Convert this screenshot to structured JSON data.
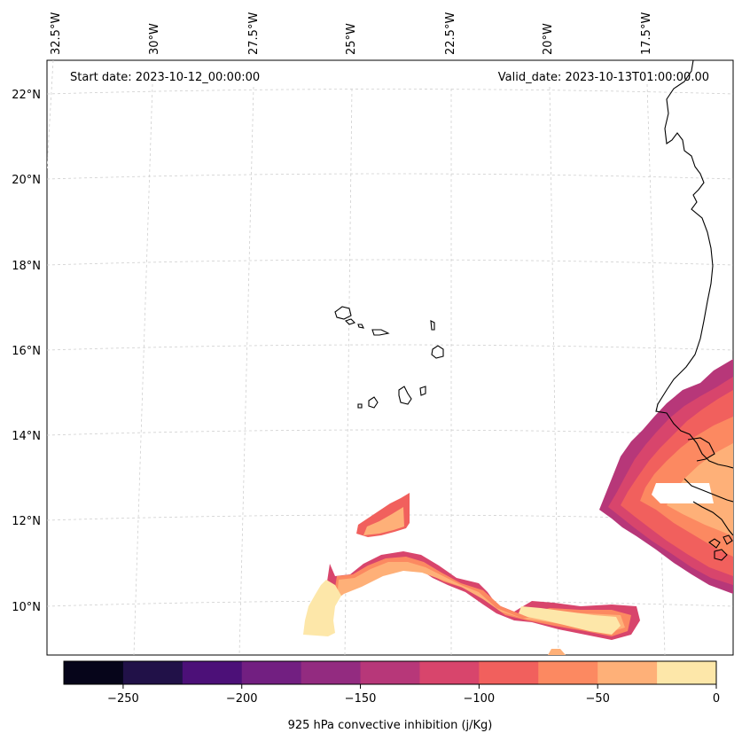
{
  "header": {
    "start_date": "Start date: 2023-10-12_00:00:00",
    "valid_date": "Valid_date: 2023-10-13T01:00:00.00"
  },
  "axes": {
    "lon_labels": [
      "32.5°W",
      "30°W",
      "27.5°W",
      "25°W",
      "22.5°W",
      "20°W",
      "17.5°W"
    ],
    "lat_labels": [
      "22°N",
      "20°N",
      "18°N",
      "16°N",
      "14°N",
      "12°N",
      "10°N"
    ]
  },
  "colorbar": {
    "label": "925 hPa convective inhibition (j/Kg)",
    "tick_labels": [
      "−250",
      "−200",
      "−150",
      "−100",
      "−50",
      "0"
    ],
    "colors": [
      "#06051a",
      "#211148",
      "#4c1078",
      "#721f81",
      "#932b80",
      "#b73779",
      "#d8456c",
      "#f1605d",
      "#fc8961",
      "#feb078",
      "#fde7a9"
    ],
    "levels": [
      -275,
      -250,
      -225,
      -200,
      -175,
      -150,
      -125,
      -100,
      -75,
      -50,
      -25,
      0
    ]
  },
  "map": {
    "projection": "lambert-conformal",
    "gridlines": "dashed light grey",
    "lon_range": [
      -33,
      -15.5
    ],
    "lat_range": [
      9,
      22.8
    ]
  }
}
